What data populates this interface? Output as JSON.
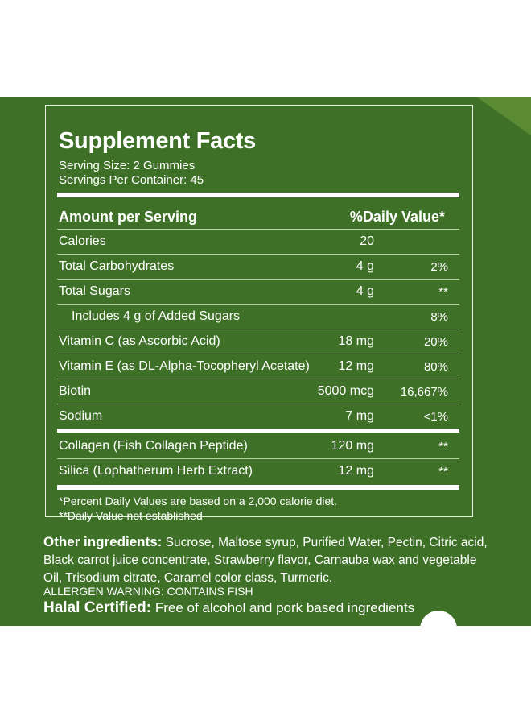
{
  "facts": {
    "title": "Supplement Facts",
    "serving_size": "Serving Size: 2 Gummies",
    "servings_per_container": "Servings Per Container: 45",
    "header_amount": "Amount per Serving",
    "header_dv": "%Daily Value*",
    "rows": [
      {
        "name": "Calories",
        "amount": "20",
        "dv": ""
      },
      {
        "name": "Total Carbohydrates",
        "amount": "4 g",
        "dv": "2%"
      },
      {
        "name": "Total Sugars",
        "amount": "4 g",
        "dv": "**"
      },
      {
        "name": "Includes 4 g of Added Sugars",
        "amount": "",
        "dv": "8%"
      },
      {
        "name": "Vitamin C (as Ascorbic Acid)",
        "amount": "18 mg",
        "dv": "20%"
      },
      {
        "name": "Vitamin E (as  DL-Alpha-Tocopheryl Acetate)",
        "amount": "12 mg",
        "dv": "80%"
      },
      {
        "name": "Biotin",
        "amount": "5000 mcg",
        "dv": "16,667%"
      },
      {
        "name": "Sodium",
        "amount": "7 mg",
        "dv": "<1%"
      },
      {
        "name": "Collagen (Fish Collagen Peptide)",
        "amount": "120 mg",
        "dv": "**"
      },
      {
        "name": "Silica (Lophatherum Herb Extract)",
        "amount": "12 mg",
        "dv": "**"
      }
    ],
    "footnote_1": "*Percent Daily Values are based on a 2,000 calorie diet.",
    "footnote_2": "**Daily Value not established"
  },
  "other": {
    "label": "Other ingredients:",
    "text": " Sucrose, Maltose syrup, Purified Water, Pectin, Citric acid, Black carrot juice concentrate, Strawberry flavor, Carnauba wax and vegetable Oil, Trisodium citrate, Caramel color class, Turmeric."
  },
  "allergen": "ALLERGEN WARNING: CONTAINS FISH",
  "halal": {
    "label": "Halal Certified:",
    "text": " Free of alcohol and pork based ingredients"
  },
  "colors": {
    "panel": "#3e7127",
    "text": "#ffffff"
  }
}
